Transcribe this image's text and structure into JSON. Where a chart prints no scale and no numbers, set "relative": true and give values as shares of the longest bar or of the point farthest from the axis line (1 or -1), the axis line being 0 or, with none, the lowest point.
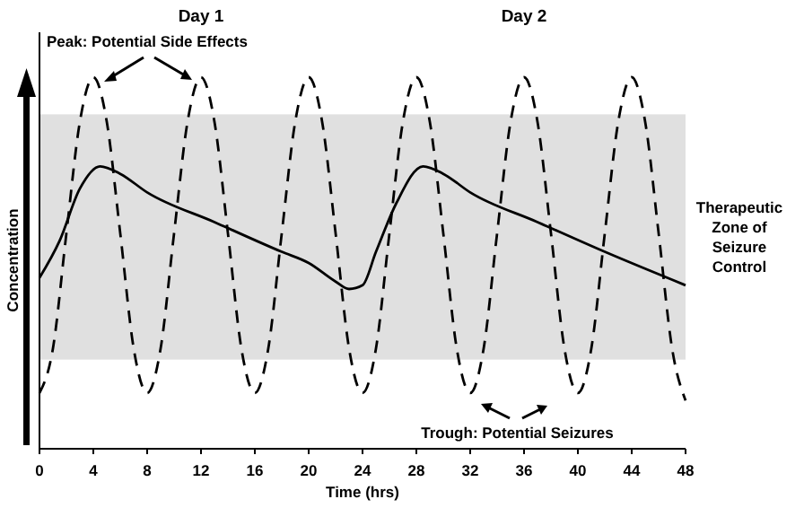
{
  "chart_data": {
    "type": "line",
    "relative": true,
    "xlabel": "Time (hrs)",
    "ylabel": "Concentration",
    "xlim": [
      0,
      48
    ],
    "xticks": [
      0,
      4,
      8,
      12,
      16,
      20,
      24,
      28,
      32,
      36,
      40,
      44,
      48
    ],
    "series": [
      {
        "color": "#000000",
        "line_style": "dashed",
        "x": [
          0,
          1,
          2,
          3,
          4,
          5,
          6,
          7,
          8,
          9,
          10,
          11,
          12,
          13,
          14,
          15,
          16,
          17,
          18,
          19,
          20,
          21,
          22,
          23,
          24,
          25,
          26,
          27,
          28,
          29,
          30,
          31,
          32,
          33,
          34,
          35,
          36,
          37,
          38,
          39,
          40,
          41,
          42,
          43,
          44,
          45,
          46,
          47,
          48
        ],
        "values": [
          0.15,
          0.27,
          0.58,
          0.88,
          1,
          0.88,
          0.58,
          0.27,
          0.15,
          0.27,
          0.58,
          0.88,
          1,
          0.88,
          0.58,
          0.27,
          0.15,
          0.27,
          0.58,
          0.88,
          1,
          0.88,
          0.58,
          0.27,
          0.15,
          0.27,
          0.58,
          0.88,
          1,
          0.88,
          0.58,
          0.27,
          0.15,
          0.27,
          0.58,
          0.88,
          1,
          0.88,
          0.58,
          0.27,
          0.15,
          0.27,
          0.58,
          0.88,
          1,
          0.88,
          0.58,
          0.27,
          0.13
        ]
      },
      {
        "color": "#000000",
        "line_style": "solid",
        "x": [
          0,
          1.5,
          3,
          4.5,
          6,
          8,
          13,
          18,
          20,
          22,
          23,
          24,
          25,
          26.5,
          28.5,
          30,
          32,
          37,
          42,
          48
        ],
        "values": [
          0.46,
          0.56,
          0.7,
          0.76,
          0.74,
          0.69,
          0.61,
          0.53,
          0.5,
          0.45,
          0.43,
          0.44,
          0.53,
          0.66,
          0.76,
          0.74,
          0.69,
          0.61,
          0.53,
          0.44
        ]
      }
    ],
    "bands": [
      {
        "axis": "y",
        "from": 0.24,
        "to": 0.9,
        "label": "Therapeutic Zone of Seizure Control",
        "color": "#e0e0e0"
      }
    ],
    "annotations": [
      "Day 1",
      "Day 2",
      "Peak: Potential Side Effects",
      "Trough: Potential Seizures"
    ]
  }
}
